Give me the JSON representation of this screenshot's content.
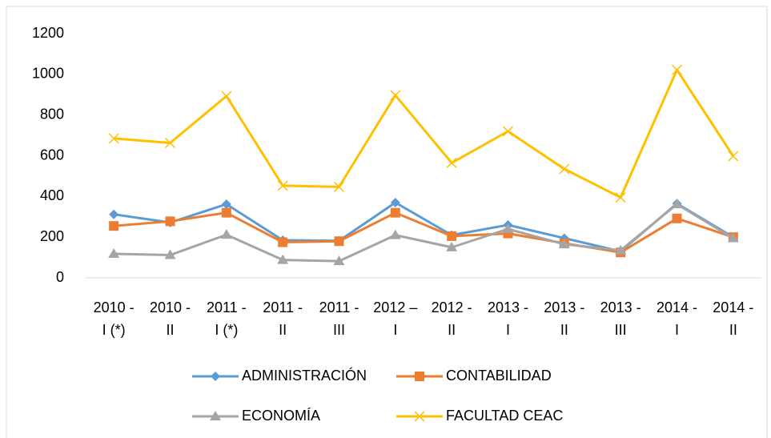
{
  "chart_data": {
    "type": "line",
    "categories": [
      "2010 - I (*)",
      "2010 - II",
      "2011 - I (*)",
      "2011 - II",
      "2011 - III",
      "2012 – I",
      "2012 - II",
      "2013 - I",
      "2013 - II",
      "2013 - III",
      "2014 - I",
      "2014 - II"
    ],
    "series": [
      {
        "name": "ADMINISTRACIÓN",
        "color": "#5b9bd5",
        "marker": "diamond",
        "values": [
          312,
          272,
          362,
          185,
          182,
          370,
          210,
          260,
          195,
          130,
          365,
          200
        ]
      },
      {
        "name": "CONTABILIDAD",
        "color": "#ed7d31",
        "marker": "square",
        "values": [
          255,
          278,
          320,
          175,
          180,
          320,
          205,
          218,
          170,
          125,
          292,
          200
        ]
      },
      {
        "name": "ECONOMÍA",
        "color": "#a5a5a5",
        "marker": "triangle",
        "values": [
          118,
          112,
          212,
          88,
          82,
          210,
          150,
          240,
          165,
          135,
          362,
          195
        ]
      },
      {
        "name": "FACULTAD CEAC",
        "color": "#ffc000",
        "marker": "x",
        "values": [
          685,
          663,
          893,
          453,
          447,
          897,
          565,
          720,
          535,
          395,
          1022,
          598
        ]
      }
    ],
    "ylim": [
      0,
      1200
    ],
    "yticks": [
      0,
      200,
      400,
      600,
      800,
      1000,
      1200
    ],
    "grid": false,
    "legend": "bottom"
  }
}
